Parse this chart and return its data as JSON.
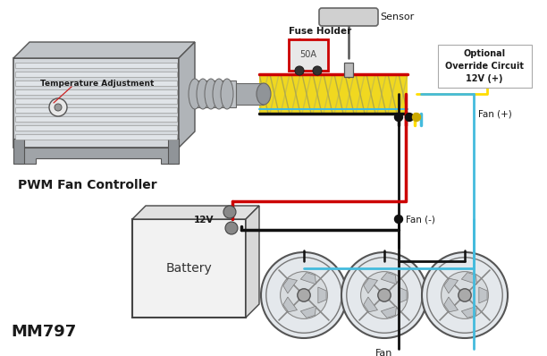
{
  "background_color": "#ffffff",
  "labels": {
    "temperature_adjustment": "Temperature Adjustment",
    "pwm_fan_controller": "PWM Fan Controller",
    "fuse_holder": "Fuse Holder",
    "fuse_label": "50A",
    "sensor": "Sensor",
    "optional_override": "Optional\nOverride Circuit\n12V (+)",
    "fan_plus": "Fan (+)",
    "fan_minus": "Fan (-)",
    "battery": "Battery",
    "battery_12v": "12V",
    "fan_label": "Fan",
    "model": "MM797"
  },
  "colors": {
    "red_wire": "#cc0000",
    "black_wire": "#111111",
    "blue_wire": "#44bbdd",
    "yellow_wire": "#ffdd00",
    "harness_yellow": "#f0d820",
    "harness_green": "#88bb44",
    "controller_body": "#c8cace",
    "controller_outline": "#555555",
    "battery_body": "#f0f0f0",
    "text_dark": "#1a1a1a",
    "dot_black": "#111111",
    "fuse_red": "#cc0000",
    "fuse_box": "#e8e8e8",
    "border_color": "#555555",
    "wire_gray": "#555555"
  },
  "figsize": [
    6.12,
    3.98
  ],
  "dpi": 100
}
